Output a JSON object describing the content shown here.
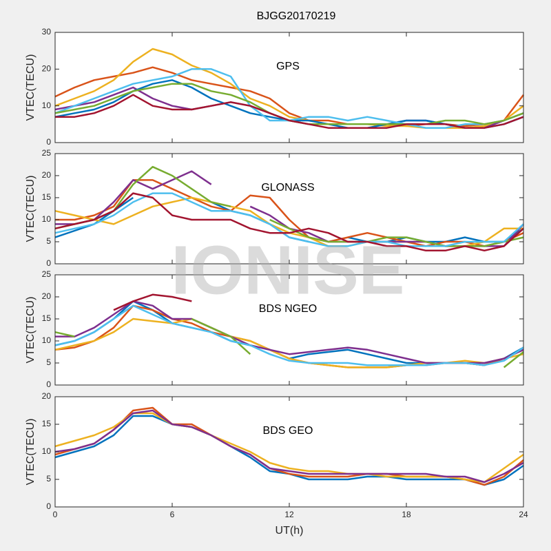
{
  "watermark": "IONISE",
  "chart_data": [
    {
      "type": "line",
      "title": "BJGG20170219",
      "annotation": "GPS",
      "ylabel": "VTEC(TECU)",
      "xlim": [
        0,
        24
      ],
      "xticks": [
        0,
        6,
        12,
        18,
        24
      ],
      "ylim": [
        0,
        30
      ],
      "yticks": [
        0,
        10,
        20,
        30
      ],
      "x": [
        0,
        1,
        2,
        3,
        4,
        5,
        6,
        7,
        8,
        9,
        10,
        11,
        12,
        13,
        14,
        15,
        16,
        17,
        18,
        19,
        20,
        21,
        22,
        23,
        24
      ],
      "series": [
        {
          "color": "#D95319",
          "values": [
            12.5,
            15,
            17,
            18,
            19,
            20.5,
            19,
            17,
            16,
            15,
            14,
            12,
            8,
            6,
            6,
            5,
            5,
            5,
            4.5,
            5,
            5,
            4.5,
            5,
            6,
            13
          ]
        },
        {
          "color": "#EDB120",
          "values": [
            10,
            12,
            14,
            17,
            22,
            25.5,
            24,
            21,
            19,
            16,
            12,
            10,
            7,
            6,
            5,
            5,
            5,
            4.5,
            4.5,
            4,
            4,
            4,
            4.5,
            6,
            10
          ]
        },
        {
          "color": "#7E2F8E",
          "values": [
            9,
            10,
            11,
            13,
            15,
            12,
            10,
            9,
            10,
            11,
            10,
            8,
            6,
            5,
            5,
            5,
            5,
            5,
            6,
            6,
            5,
            4,
            4,
            6,
            8
          ]
        },
        {
          "color": "#0072BD",
          "values": [
            7,
            8,
            9,
            11,
            14,
            16,
            17,
            15,
            12,
            10,
            8,
            7,
            6,
            6,
            5,
            4,
            4,
            5,
            6,
            6,
            5,
            4,
            4,
            5,
            7
          ]
        },
        {
          "color": "#4DBEEE",
          "values": [
            8,
            10,
            12,
            14,
            16,
            17,
            18,
            20,
            20,
            18,
            10,
            6,
            6,
            7,
            7,
            6,
            7,
            6,
            5,
            4,
            4,
            5,
            5,
            6,
            8
          ]
        },
        {
          "color": "#77AC30",
          "values": [
            8,
            9,
            10,
            12,
            14,
            15,
            16,
            16,
            14,
            13,
            11,
            8,
            6,
            5,
            5,
            5,
            5,
            5,
            5,
            5,
            6,
            6,
            5,
            6,
            8
          ]
        },
        {
          "color": "#A2142F",
          "values": [
            7,
            7,
            8,
            10,
            13,
            10,
            9,
            9,
            10,
            11,
            10,
            8,
            6,
            5,
            4,
            4,
            4,
            4,
            5,
            5,
            5,
            4,
            4,
            5,
            7
          ]
        }
      ]
    },
    {
      "type": "line",
      "annotation": "GLONASS",
      "ylabel": "VTEC(TECU)",
      "xlim": [
        0,
        24
      ],
      "xticks": [
        0,
        6,
        12,
        18,
        24
      ],
      "ylim": [
        0,
        25
      ],
      "yticks": [
        0,
        5,
        10,
        15,
        20,
        25
      ],
      "x": [
        0,
        1,
        2,
        3,
        4,
        5,
        6,
        7,
        8,
        9,
        10,
        11,
        12,
        13,
        14,
        15,
        16,
        17,
        18,
        19,
        20,
        21,
        22,
        23,
        24
      ],
      "series": [
        {
          "color": "#0072BD",
          "values": [
            6,
            7.5,
            9,
            12,
            15,
            null,
            null,
            null,
            14,
            12,
            11,
            9,
            6,
            5,
            null,
            6,
            5,
            5,
            6,
            5,
            5,
            6,
            5,
            5,
            8
          ]
        },
        {
          "color": "#D95319",
          "values": [
            10,
            10,
            11,
            13,
            19,
            19,
            17,
            15,
            13,
            12,
            15.5,
            15,
            10,
            6,
            5,
            6,
            7,
            6,
            5,
            4,
            5,
            5,
            4,
            5,
            7
          ]
        },
        {
          "color": "#EDB120",
          "values": [
            12,
            11,
            10,
            9,
            11,
            13,
            14,
            15,
            14,
            13,
            12,
            9,
            7,
            6,
            4,
            4,
            5,
            5,
            5,
            5,
            4,
            4,
            5,
            8,
            8
          ]
        },
        {
          "color": "#7E2F8E",
          "values": [
            9,
            9,
            10,
            14,
            19,
            17,
            19,
            21,
            18,
            null,
            13,
            11,
            8,
            7,
            5,
            5,
            5,
            5,
            5,
            5,
            4,
            4,
            4,
            4,
            9
          ]
        },
        {
          "color": "#77AC30",
          "values": [
            8,
            9,
            10,
            12,
            18,
            22,
            20,
            17,
            14,
            13,
            null,
            10,
            8,
            6,
            5,
            5,
            5,
            6,
            6,
            5,
            4,
            4,
            4,
            5,
            6
          ]
        },
        {
          "color": "#4DBEEE",
          "values": [
            7,
            8,
            9,
            11,
            14,
            16,
            16,
            14,
            12,
            12,
            11,
            9,
            6,
            5,
            4,
            4,
            5,
            5,
            4,
            4,
            4,
            5,
            5,
            5,
            9
          ]
        },
        {
          "color": "#A2142F",
          "values": [
            8,
            9,
            10,
            12,
            16,
            15,
            11,
            10,
            10,
            10,
            8,
            7,
            7,
            8,
            7,
            5,
            5,
            4,
            4,
            3,
            3,
            4,
            3,
            4,
            8
          ]
        }
      ]
    },
    {
      "type": "line",
      "annotation": "BDS NGEO",
      "ylabel": "VTEC(TECU)",
      "xlim": [
        0,
        24
      ],
      "xticks": [
        0,
        6,
        12,
        18,
        24
      ],
      "ylim": [
        0,
        25
      ],
      "yticks": [
        0,
        5,
        10,
        15,
        20,
        25
      ],
      "x": [
        0,
        1,
        2,
        3,
        4,
        5,
        6,
        7,
        8,
        9,
        10,
        11,
        12,
        13,
        14,
        15,
        16,
        17,
        18,
        19,
        20,
        21,
        22,
        23,
        24
      ],
      "series": [
        {
          "color": "#0072BD",
          "values": [
            9,
            10,
            12,
            15,
            19,
            17,
            14,
            13,
            12,
            10,
            9,
            8,
            6,
            7,
            7.5,
            8,
            7,
            6,
            5,
            5,
            5,
            5,
            4.5,
            6,
            8.5
          ]
        },
        {
          "color": "#D95319",
          "values": [
            8,
            8.5,
            10,
            13,
            18,
            17,
            15,
            14,
            12,
            11,
            10,
            8,
            6,
            5,
            4.5,
            4,
            4,
            4,
            4.5,
            4.5,
            5,
            5,
            4.5,
            6,
            8
          ]
        },
        {
          "color": "#EDB120",
          "values": [
            8,
            9,
            10,
            12,
            15,
            14.5,
            14,
            15,
            13,
            11,
            10,
            8,
            6,
            5,
            4.5,
            4,
            4,
            4,
            4.5,
            5,
            5,
            5.5,
            5,
            6,
            7
          ]
        },
        {
          "color": "#7E2F8E",
          "values": [
            11,
            11,
            13,
            16,
            19,
            18,
            15,
            15,
            13,
            11,
            9,
            8,
            7,
            7.5,
            8,
            8.5,
            8,
            7,
            6,
            5,
            5,
            5,
            5,
            6,
            8
          ]
        },
        {
          "color": "#77AC30",
          "values": [
            12,
            11,
            null,
            null,
            null,
            null,
            null,
            15,
            13,
            11,
            7,
            null,
            null,
            null,
            null,
            null,
            null,
            null,
            null,
            null,
            null,
            null,
            null,
            4,
            7.5
          ]
        },
        {
          "color": "#4DBEEE",
          "values": [
            9,
            10,
            12,
            15,
            18,
            16,
            14,
            13,
            12,
            10,
            9,
            7,
            5.5,
            5,
            5,
            5,
            4.5,
            4.5,
            4.5,
            4.5,
            5,
            5,
            4.5,
            5.5,
            8.5
          ]
        },
        {
          "color": "#A2142F",
          "values": [
            null,
            null,
            null,
            17,
            19,
            20.5,
            20,
            19,
            null,
            null,
            null,
            null,
            null,
            null,
            null,
            null,
            null,
            null,
            null,
            null,
            null,
            null,
            null,
            null,
            null
          ]
        }
      ]
    },
    {
      "type": "line",
      "annotation": "BDS GEO",
      "ylabel": "VTEC(TECU)",
      "xlabel": "UT(h)",
      "xlim": [
        0,
        24
      ],
      "xticks": [
        0,
        6,
        12,
        18,
        24
      ],
      "ylim": [
        0,
        20
      ],
      "yticks": [
        0,
        5,
        10,
        15,
        20
      ],
      "x": [
        0,
        1,
        2,
        3,
        4,
        5,
        6,
        7,
        8,
        9,
        10,
        11,
        12,
        13,
        14,
        15,
        16,
        17,
        18,
        19,
        20,
        21,
        22,
        23,
        24
      ],
      "series": [
        {
          "color": "#0072BD",
          "values": [
            9,
            10,
            11,
            13,
            16.5,
            16.5,
            15,
            14.5,
            13,
            11,
            9,
            6.5,
            6,
            5,
            5,
            5,
            5.5,
            5.5,
            5,
            5,
            5,
            5,
            4,
            5,
            7.5
          ]
        },
        {
          "color": "#D95319",
          "values": [
            9.5,
            10.5,
            11.5,
            14,
            17.5,
            18,
            15,
            15,
            13,
            11,
            9.5,
            7,
            6,
            5.5,
            5.5,
            5.5,
            6,
            6,
            5.5,
            5.5,
            5.5,
            5,
            4,
            5.5,
            8.5
          ]
        },
        {
          "color": "#EDB120",
          "values": [
            11,
            12,
            13,
            14.5,
            17,
            17,
            15,
            14.5,
            13,
            11.5,
            10,
            8,
            7,
            6.5,
            6.5,
            6,
            6,
            5.5,
            5.5,
            5.5,
            5.5,
            5,
            4.5,
            7,
            9.5
          ]
        },
        {
          "color": "#7E2F8E",
          "values": [
            10,
            10.5,
            11.5,
            14,
            17,
            17.5,
            15,
            14.5,
            13,
            11,
            9.5,
            7,
            6.5,
            6,
            6,
            6,
            6,
            6,
            6,
            6,
            5.5,
            5.5,
            4.5,
            6,
            8
          ]
        }
      ]
    }
  ]
}
